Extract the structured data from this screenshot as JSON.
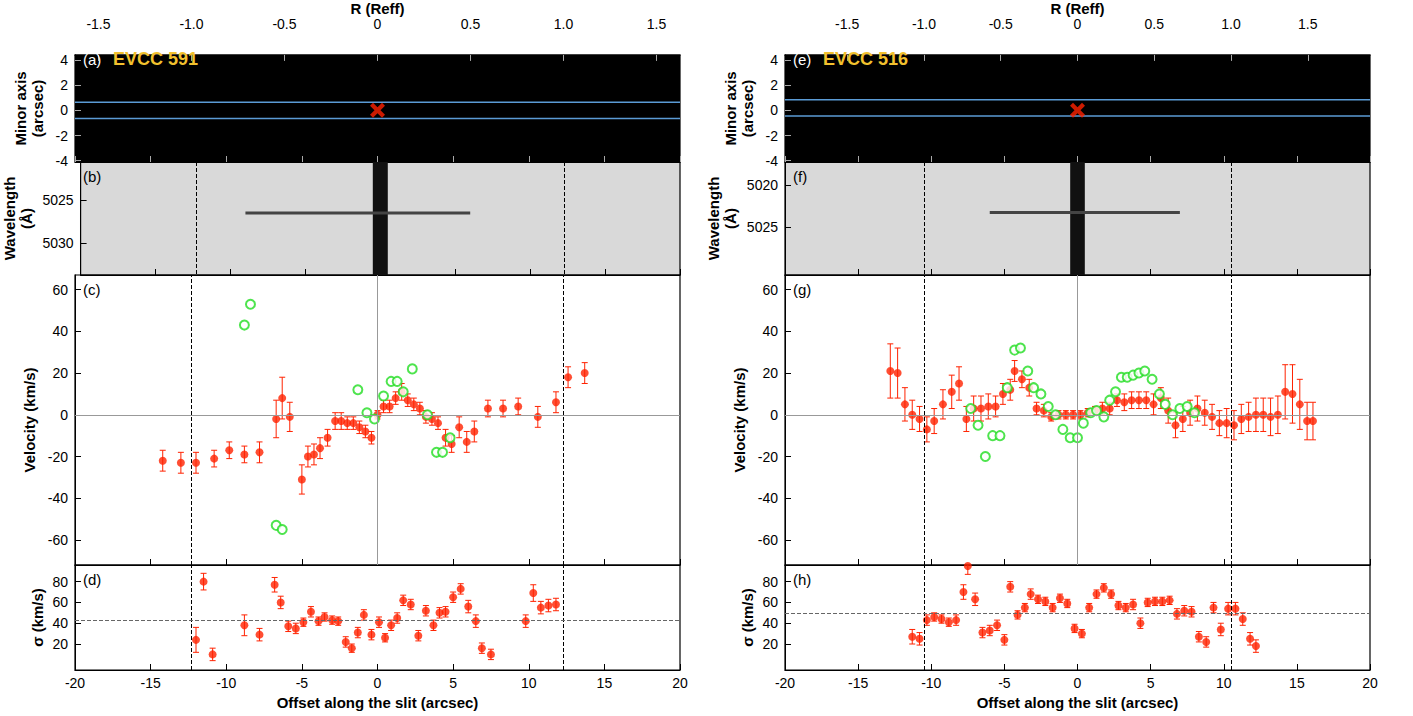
{
  "chart_data": [
    {
      "type": "image",
      "panel": "(a)",
      "title": "EVCC 591",
      "ylabel": "Minor axis (arcsec)",
      "xlim": [
        -20,
        20
      ],
      "xticks": [
        -20,
        -15,
        -10,
        -5,
        0,
        5,
        10,
        15,
        20
      ],
      "ylim": [
        -4.1,
        4.4
      ],
      "yticks": [
        -4,
        -2,
        0,
        2,
        4
      ],
      "tick_labels": "y",
      "grid": false,
      "top_axis": {
        "label": "R (Reff)",
        "lim": [
          -1.626,
          1.626
        ],
        "ticks": [
          -1.5,
          {
            "value": -1,
            "label": "-1.0"
          },
          -0.5,
          0,
          0.5,
          {
            "value": 1,
            "label": "1.0"
          },
          1.5
        ]
      },
      "slit_edges": [
        0.65,
        -0.65
      ],
      "center": {
        "x": 0,
        "y": 0,
        "color": "#ff2200",
        "marker": "x"
      }
    },
    {
      "type": "spectrum",
      "panel": "(b)",
      "ylabel": "Wavelength (Å)",
      "xlim": [
        -20,
        20
      ],
      "xticks": [
        -20,
        -15,
        -10,
        -5,
        0,
        5,
        10,
        15,
        20
      ],
      "ylim": [
        5033.7,
        5020.6
      ],
      "yticks": [
        5025,
        5030
      ],
      "tick_labels": "y",
      "grid": false,
      "emission_line": {
        "wavelength": 5026.5,
        "x_range": [
          -9,
          6
        ]
      },
      "continuum_band": [
        -0.5,
        0.5
      ],
      "reff_lines": [
        -12.3,
        12.3
      ]
    },
    {
      "type": "scatter",
      "panel": "(c)",
      "ylabel": "Velocity (km/s)",
      "xlim": [
        -20,
        20
      ],
      "xticks": [
        -20,
        -15,
        -10,
        -5,
        0,
        5,
        10,
        15,
        20
      ],
      "ylim": [
        -72,
        67
      ],
      "yticks": [
        -60,
        -40,
        -20,
        0,
        20,
        40,
        60
      ],
      "tick_labels": "y",
      "grid": false,
      "reff_lines": [
        -12.3,
        12.3
      ],
      "reference_lines": {
        "h": [
          0
        ],
        "v": [
          0
        ]
      },
      "series": [
        {
          "color": "#ff2200",
          "marker": "filled_circle",
          "x": [
            -14.2,
            -13.0,
            -12.0,
            -10.8,
            -9.8,
            -8.8,
            -7.8,
            -6.7,
            -6.3,
            -5.8,
            -5.0,
            -4.6,
            -4.2,
            -3.8,
            -3.3,
            -2.8,
            -2.4,
            -2.0,
            -1.6,
            -1.2,
            -0.8,
            -0.4,
            0.0,
            0.4,
            0.8,
            1.2,
            1.6,
            2.0,
            2.4,
            2.8,
            3.2,
            3.6,
            4.0,
            4.5,
            4.9,
            5.4,
            5.9,
            6.4,
            7.3,
            8.3,
            9.3,
            10.6,
            11.8,
            12.6,
            13.7
          ],
          "values": [
            -22,
            -23,
            -23,
            -21,
            -17,
            -19,
            -18,
            -2,
            8,
            -1,
            -31,
            -20,
            -19,
            -16,
            -11,
            -3,
            -3,
            -4,
            -4,
            -6,
            -8,
            -11,
            0,
            4,
            4,
            8,
            11,
            7,
            5,
            3,
            -1,
            -2,
            -4,
            -11,
            -14,
            -6,
            -13,
            -8,
            3,
            3,
            4,
            -1,
            6,
            18,
            20
          ],
          "errors": [
            5,
            5,
            5,
            4,
            4,
            4,
            5,
            9,
            10,
            7,
            7,
            5,
            5,
            5,
            4,
            4,
            4,
            3,
            3,
            3,
            3,
            3,
            2,
            3,
            3,
            3,
            4,
            3,
            3,
            3,
            3,
            3,
            3,
            4,
            4,
            5,
            5,
            5,
            4,
            4,
            4,
            5,
            5,
            5,
            5
          ]
        },
        {
          "color": "#22dd22",
          "marker": "open_circle",
          "x": [
            -8.8,
            -8.4,
            -6.7,
            -6.3,
            -1.3,
            -0.7,
            -0.2,
            0.4,
            0.9,
            1.3,
            1.7,
            2.3,
            3.3,
            3.9,
            4.3,
            4.8
          ],
          "values": [
            43,
            53,
            -53,
            -55,
            12,
            1,
            -2,
            9,
            16,
            16,
            11,
            22,
            0,
            -18,
            -18,
            -11
          ]
        }
      ]
    },
    {
      "type": "scatter",
      "panel": "(d)",
      "ylabel": "σ (km/s)",
      "xlabel": "Offset along the slit (arcsec)",
      "xlim": [
        -20,
        20
      ],
      "xticks": [
        -20,
        -15,
        -10,
        -5,
        0,
        5,
        10,
        15,
        20
      ],
      "ylim": [
        -5,
        96
      ],
      "yticks": [
        20,
        40,
        60,
        80
      ],
      "tick_labels": true,
      "grid": false,
      "reff_lines": [
        -12.3,
        12.3
      ],
      "reference_lines": {
        "h_dashed": [
          43
        ]
      },
      "series": [
        {
          "color": "#ff2200",
          "marker": "filled_circle",
          "x": [
            -12.0,
            -11.5,
            -10.9,
            -8.8,
            -7.8,
            -6.8,
            -6.4,
            -5.9,
            -5.4,
            -4.9,
            -4.4,
            -3.9,
            -3.5,
            -3.0,
            -2.6,
            -2.1,
            -1.7,
            -1.3,
            -0.9,
            -0.4,
            0.1,
            0.5,
            0.9,
            1.3,
            1.7,
            2.2,
            2.7,
            3.2,
            3.7,
            4.1,
            4.5,
            5.0,
            5.5,
            6.0,
            6.5,
            6.9,
            7.5,
            9.8,
            10.3,
            10.8,
            11.3,
            11.8
          ],
          "values": [
            24,
            80,
            10,
            38,
            29,
            77,
            60,
            37,
            35,
            41,
            51,
            42,
            46,
            43,
            42,
            22,
            16,
            31,
            48,
            29,
            41,
            26,
            38,
            45,
            62,
            58,
            28,
            52,
            38,
            50,
            51,
            65,
            73,
            56,
            42,
            16,
            10,
            42,
            69,
            55,
            57,
            58
          ],
          "errors": [
            12,
            8,
            6,
            10,
            6,
            7,
            6,
            5,
            5,
            4,
            5,
            4,
            4,
            4,
            4,
            5,
            4,
            5,
            5,
            5,
            5,
            4,
            5,
            5,
            5,
            5,
            5,
            5,
            5,
            5,
            5,
            5,
            5,
            6,
            6,
            5,
            5,
            6,
            8,
            6,
            6,
            6
          ]
        }
      ]
    },
    {
      "type": "image",
      "panel": "(e)",
      "title": "EVCC 516",
      "ylabel": "Minor axis (arcsec)",
      "xlim": [
        -20,
        20
      ],
      "xticks": [
        -20,
        -15,
        -10,
        -5,
        0,
        5,
        10,
        15,
        20
      ],
      "ylim": [
        -4.1,
        4.4
      ],
      "yticks": [
        -4,
        -2,
        0,
        2,
        4
      ],
      "tick_labels": "y",
      "grid": false,
      "top_axis": {
        "label": "R (Reff)",
        "lim": [
          -1.905,
          1.905
        ],
        "ticks": [
          -1.5,
          {
            "value": -1,
            "label": "-1.0"
          },
          -0.5,
          0,
          0.5,
          {
            "value": 1,
            "label": "1.0"
          },
          1.5
        ]
      },
      "slit_edges": [
        0.85,
        -0.45
      ],
      "center": {
        "x": 0,
        "y": 0,
        "color": "#ff2200",
        "marker": "x"
      }
    },
    {
      "type": "spectrum",
      "panel": "(f)",
      "ylabel": "Wavelength (Å)",
      "xlim": [
        -20,
        20
      ],
      "xticks": [
        -20,
        -15,
        -10,
        -5,
        0,
        5,
        10,
        15,
        20
      ],
      "ylim": [
        5030.7,
        5017.3
      ],
      "yticks": [
        5020,
        5025
      ],
      "tick_labels": "y",
      "grid": false,
      "emission_line": {
        "wavelength": 5023.3,
        "x_range": [
          -6,
          7
        ]
      },
      "continuum_band": [
        -0.5,
        0.5
      ],
      "reff_lines": [
        -10.5,
        10.5
      ]
    },
    {
      "type": "scatter",
      "panel": "(g)",
      "ylabel": "Velocity (km/s)",
      "xlim": [
        -20,
        20
      ],
      "xticks": [
        -20,
        -15,
        -10,
        -5,
        0,
        5,
        10,
        15,
        20
      ],
      "ylim": [
        -72,
        67
      ],
      "yticks": [
        -60,
        -40,
        -20,
        0,
        20,
        40,
        60
      ],
      "tick_labels": "y",
      "grid": false,
      "reff_lines": [
        -10.5,
        10.5
      ],
      "reference_lines": {
        "h": [
          0
        ],
        "v": [
          0
        ]
      },
      "series": [
        {
          "color": "#ff2200",
          "marker": "filled_circle",
          "x": [
            -12.8,
            -12.3,
            -11.8,
            -11.3,
            -10.8,
            -10.3,
            -9.8,
            -9.2,
            -8.6,
            -8.1,
            -7.6,
            -7.1,
            -6.6,
            -6.1,
            -5.6,
            -5.1,
            -4.6,
            -4.3,
            -3.8,
            -3.3,
            -2.8,
            -2.3,
            -1.8,
            -1.3,
            -0.8,
            -0.3,
            0.2,
            0.7,
            1.2,
            1.7,
            2.2,
            2.7,
            3.2,
            3.7,
            4.2,
            4.7,
            5.2,
            5.7,
            6.2,
            6.7,
            7.2,
            7.7,
            8.2,
            8.7,
            9.2,
            9.7,
            10.2,
            10.7,
            11.2,
            11.7,
            12.2,
            12.7,
            13.2,
            13.7,
            14.2,
            14.7,
            15.2,
            15.7,
            16.1
          ],
          "values": [
            21,
            20,
            5,
            0,
            -2,
            -7,
            -3,
            5,
            11,
            15,
            -2,
            3,
            3,
            4,
            4,
            10,
            12,
            21,
            17,
            13,
            3,
            2,
            -1,
            0,
            0,
            0,
            0,
            1,
            2,
            3,
            3,
            7,
            6,
            7,
            7,
            7,
            5,
            8,
            2,
            -5,
            -2,
            1,
            3,
            1,
            -1,
            -4,
            -4,
            -5,
            -2,
            -1,
            0,
            0,
            -1,
            0,
            11,
            10,
            5,
            -3,
            -3
          ],
          "errors": [
            13,
            12,
            8,
            7,
            6,
            6,
            6,
            7,
            8,
            8,
            6,
            6,
            6,
            6,
            5,
            5,
            5,
            5,
            4,
            4,
            3,
            3,
            2,
            2,
            2,
            2,
            2,
            2,
            2,
            3,
            3,
            3,
            4,
            4,
            4,
            4,
            5,
            5,
            6,
            6,
            6,
            6,
            6,
            6,
            6,
            6,
            7,
            7,
            7,
            7,
            8,
            8,
            9,
            9,
            13,
            14,
            12,
            9,
            9
          ]
        },
        {
          "color": "#22dd22",
          "marker": "open_circle",
          "x": [
            -7.3,
            -6.8,
            -6.3,
            -5.8,
            -5.3,
            -4.8,
            -4.3,
            -3.9,
            -3.4,
            -3.0,
            -2.5,
            -2.0,
            -1.5,
            -1.0,
            -0.5,
            0,
            0.4,
            0.9,
            1.3,
            1.8,
            2.2,
            2.6,
            3.0,
            3.4,
            3.8,
            4.2,
            4.6,
            5.1,
            5.6,
            6.0,
            6.5,
            7.0,
            7.5,
            8.0
          ],
          "values": [
            3,
            -5,
            -20,
            -10,
            -10,
            13,
            31,
            32,
            21,
            13,
            10,
            4,
            0,
            -7,
            -11,
            -11,
            -4,
            1,
            2,
            -1,
            7,
            11,
            18,
            18,
            19,
            20,
            21,
            17,
            10,
            5,
            0,
            3,
            4,
            1
          ]
        }
      ]
    },
    {
      "type": "scatter",
      "panel": "(h)",
      "ylabel": "σ (km/s)",
      "xlabel": "Offset along the slit (arcsec)",
      "xlim": [
        -20,
        20
      ],
      "xticks": [
        -20,
        -15,
        -10,
        -5,
        0,
        5,
        10,
        15,
        20
      ],
      "ylim": [
        -5,
        96
      ],
      "yticks": [
        20,
        40,
        60,
        80
      ],
      "tick_labels": true,
      "grid": false,
      "reff_lines": [
        -10.5,
        10.5
      ],
      "reference_lines": {
        "h_dashed": [
          50
        ]
      },
      "series": [
        {
          "color": "#ff2200",
          "marker": "filled_circle",
          "x": [
            -11.3,
            -10.8,
            -10.3,
            -9.8,
            -9.3,
            -8.8,
            -8.3,
            -7.8,
            -7.5,
            -7.0,
            -6.5,
            -6.0,
            -5.5,
            -5.0,
            -4.6,
            -4.1,
            -3.6,
            -3.2,
            -2.7,
            -2.2,
            -1.7,
            -1.2,
            -0.7,
            -0.2,
            0.3,
            0.8,
            1.3,
            1.8,
            2.3,
            2.8,
            3.3,
            3.8,
            4.3,
            4.8,
            5.3,
            5.8,
            6.3,
            6.8,
            7.3,
            7.8,
            8.3,
            8.8,
            9.3,
            9.8,
            10.3,
            10.8,
            11.3,
            11.8,
            12.2
          ],
          "values": [
            27,
            25,
            43,
            46,
            44,
            41,
            43,
            70,
            95,
            63,
            31,
            33,
            38,
            24,
            75,
            48,
            55,
            68,
            63,
            61,
            55,
            64,
            59,
            35,
            30,
            55,
            68,
            74,
            68,
            57,
            55,
            58,
            40,
            60,
            61,
            61,
            62,
            49,
            52,
            51,
            27,
            22,
            55,
            34,
            54,
            54,
            44,
            25,
            18
          ],
          "errors": [
            7,
            6,
            5,
            4,
            4,
            4,
            5,
            7,
            8,
            6,
            5,
            5,
            5,
            5,
            5,
            4,
            4,
            5,
            4,
            4,
            4,
            4,
            4,
            4,
            4,
            4,
            4,
            4,
            4,
            4,
            4,
            5,
            5,
            4,
            4,
            4,
            4,
            5,
            5,
            5,
            5,
            5,
            5,
            6,
            6,
            6,
            6,
            6,
            6
          ]
        }
      ]
    }
  ]
}
